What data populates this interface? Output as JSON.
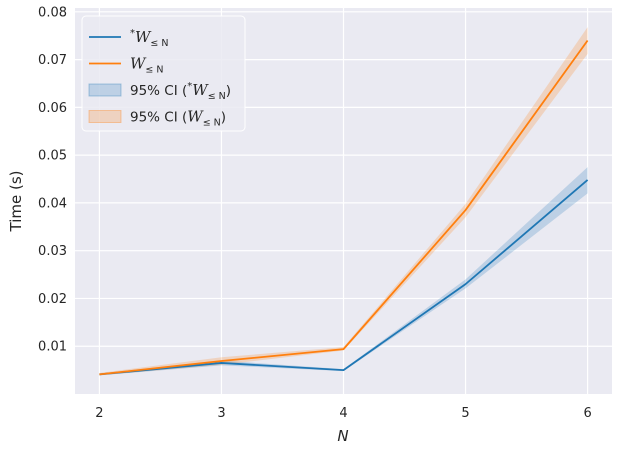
{
  "chart_data": {
    "type": "line",
    "xlabel": "N",
    "ylabel": "Time (s)",
    "x": [
      2,
      3,
      4,
      5,
      6
    ],
    "xlim": [
      1.8,
      6.2
    ],
    "ylim": [
      0.0,
      0.0808
    ],
    "yticks": [
      0.01,
      0.02,
      0.03,
      0.04,
      0.05,
      0.06,
      0.07,
      0.08
    ],
    "ytick_labels": [
      "0.01",
      "0.02",
      "0.03",
      "0.04",
      "0.05",
      "0.06",
      "0.07",
      "0.08"
    ],
    "xtick_labels": [
      "2",
      "3",
      "4",
      "5",
      "6"
    ],
    "grid": true,
    "background": "#eaeaf2",
    "legend_placement": "upper-left",
    "series": [
      {
        "name": "*W≤N",
        "color": "#1f77b4",
        "values": [
          0.0041,
          0.0065,
          0.005,
          0.023,
          0.0448
        ],
        "ci_low": [
          0.0039,
          0.006,
          0.0048,
          0.0221,
          0.042
        ],
        "ci_high": [
          0.0043,
          0.007,
          0.0052,
          0.024,
          0.0475
        ]
      },
      {
        "name": "W≤N",
        "color": "#ff7f0e",
        "values": [
          0.0041,
          0.0069,
          0.0094,
          0.0385,
          0.074
        ],
        "ci_low": [
          0.0039,
          0.0061,
          0.0091,
          0.037,
          0.0712
        ],
        "ci_high": [
          0.0044,
          0.0077,
          0.0098,
          0.0398,
          0.0768
        ]
      }
    ],
    "legend": [
      {
        "kind": "line",
        "series": 0,
        "label_prefix": "",
        "label_star": "*",
        "label_main": "W",
        "label_sub": "≤ N",
        "label_suffix": ""
      },
      {
        "kind": "line",
        "series": 1,
        "label_prefix": "",
        "label_star": "",
        "label_main": "W",
        "label_sub": "≤ N",
        "label_suffix": ""
      },
      {
        "kind": "band",
        "series": 0,
        "label_prefix": "95% CI (",
        "label_star": "*",
        "label_main": "W",
        "label_sub": "≤ N",
        "label_suffix": ")"
      },
      {
        "kind": "band",
        "series": 1,
        "label_prefix": "95% CI (",
        "label_star": "",
        "label_main": "W",
        "label_sub": "≤ N",
        "label_suffix": ")"
      }
    ]
  }
}
